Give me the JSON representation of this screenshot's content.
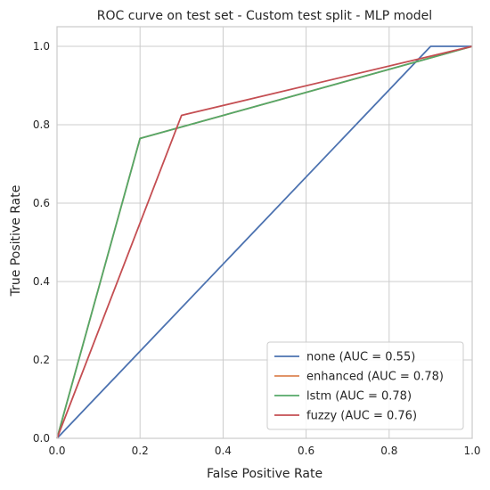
{
  "chart_data": {
    "type": "line",
    "title": "ROC curve on test set -  Custom test split - MLP model",
    "xlabel": "False Positive Rate",
    "ylabel": "True Positive Rate",
    "xlim": [
      0.0,
      1.0
    ],
    "ylim": [
      0.0,
      1.05
    ],
    "xticks": [
      0.0,
      0.2,
      0.4,
      0.6,
      0.8,
      1.0
    ],
    "yticks": [
      0.0,
      0.2,
      0.4,
      0.6,
      0.8,
      1.0
    ],
    "xtick_labels": [
      "0.0",
      "0.2",
      "0.4",
      "0.6",
      "0.8",
      "1.0"
    ],
    "ytick_labels": [
      "0.0",
      "0.2",
      "0.4",
      "0.6",
      "0.8",
      "1.0"
    ],
    "grid": true,
    "legend_position": "bottom-right",
    "series": [
      {
        "name": "none",
        "legend_label": "none (AUC = 0.55)",
        "auc": 0.55,
        "color": "#4c72b0",
        "x": [
          0.0,
          0.9,
          1.0
        ],
        "y": [
          0.0,
          1.0,
          1.0
        ]
      },
      {
        "name": "enhanced",
        "legend_label": "enhanced (AUC = 0.78)",
        "auc": 0.78,
        "color": "#dd8452",
        "x": [
          0.0,
          0.2,
          1.0
        ],
        "y": [
          0.0,
          0.765,
          1.0
        ]
      },
      {
        "name": "lstm",
        "legend_label": "lstm (AUC = 0.78)",
        "auc": 0.78,
        "color": "#55a868",
        "x": [
          0.0,
          0.2,
          1.0
        ],
        "y": [
          0.0,
          0.765,
          1.0
        ]
      },
      {
        "name": "fuzzy",
        "legend_label": "fuzzy (AUC = 0.76)",
        "auc": 0.76,
        "color": "#c44e52",
        "x": [
          0.0,
          0.3,
          1.0
        ],
        "y": [
          0.0,
          0.824,
          1.0
        ]
      }
    ]
  }
}
